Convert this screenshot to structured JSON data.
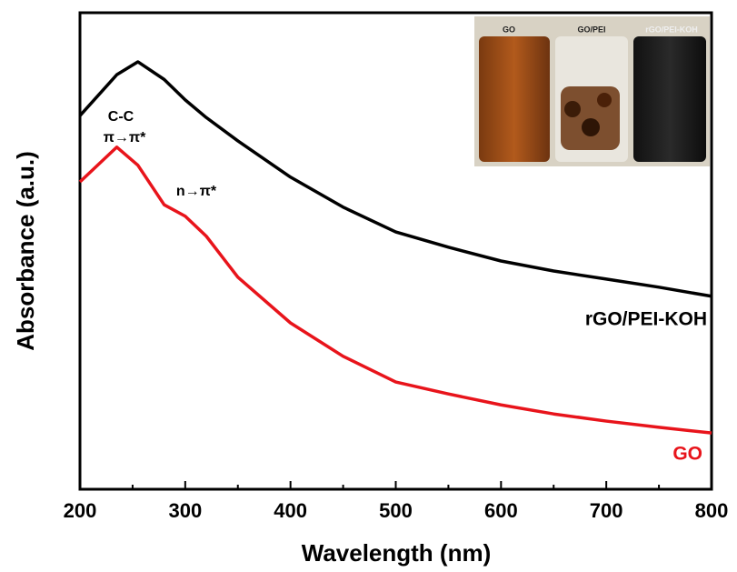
{
  "chart_data": {
    "type": "line",
    "xlabel": "Wavelength (nm)",
    "ylabel": "Absorbance (a.u.)",
    "xlim": [
      200,
      800
    ],
    "ylim": [
      0,
      1
    ],
    "xticks": [
      200,
      300,
      400,
      500,
      600,
      700,
      800
    ],
    "xminor_ticks": [
      250,
      350,
      450,
      550,
      650,
      750
    ],
    "x": [
      200,
      235,
      255,
      280,
      300,
      320,
      350,
      400,
      450,
      500,
      550,
      600,
      650,
      700,
      750,
      800
    ],
    "series": [
      {
        "name": "rGO/PEI-KOH",
        "color": "#000000",
        "values": [
          0.784,
          0.87,
          0.897,
          0.86,
          0.817,
          0.78,
          0.731,
          0.655,
          0.592,
          0.54,
          0.508,
          0.479,
          0.458,
          0.441,
          0.424,
          0.405
        ]
      },
      {
        "name": "GO",
        "color": "#e8141b",
        "values": [
          0.645,
          0.718,
          0.68,
          0.597,
          0.573,
          0.531,
          0.445,
          0.349,
          0.279,
          0.225,
          0.2,
          0.177,
          0.158,
          0.143,
          0.13,
          0.118
        ]
      }
    ],
    "annotations": [
      "C-C",
      "π→π*",
      "n→π*"
    ],
    "inset_labels": [
      "GO",
      "GO/PEI",
      "rGO/PEI-KOH"
    ]
  }
}
